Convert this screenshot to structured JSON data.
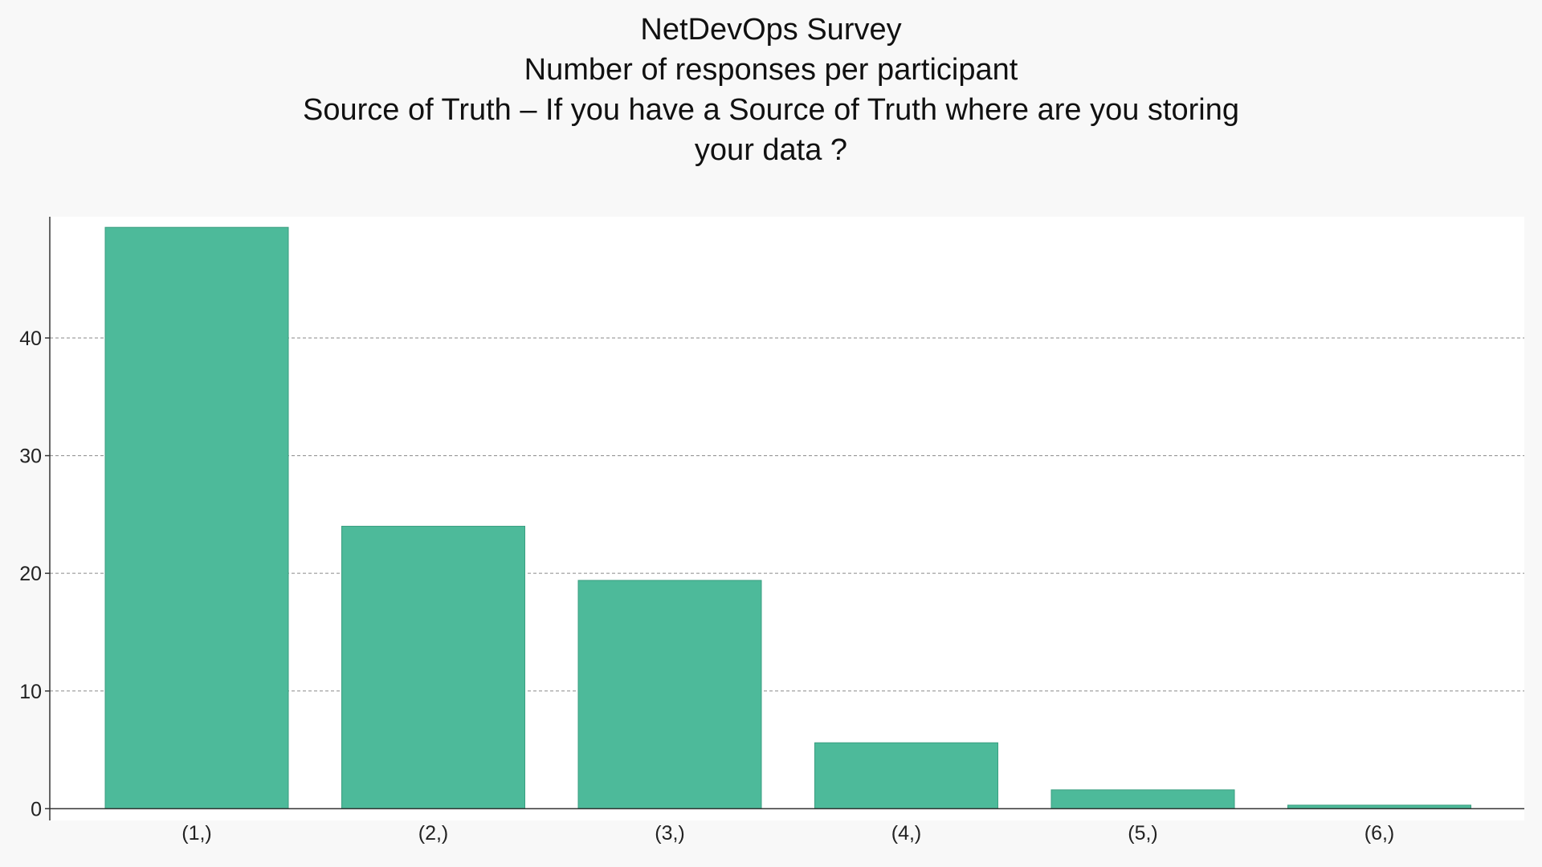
{
  "chart_data": {
    "type": "bar",
    "title": "NetDevOps Survey",
    "subtitle": "Number of responses per participant",
    "question_lines": [
      "Source of Truth – If you have a Source of Truth where are you storing",
      "your data ?"
    ],
    "xlabel": "",
    "ylabel": "",
    "categories": [
      "(1,)",
      "(2,)",
      "(3,)",
      "(4,)",
      "(5,)",
      "(6,)"
    ],
    "values": [
      49.4,
      24.0,
      19.4,
      5.6,
      1.6,
      0.3
    ],
    "ylim": [
      -1,
      50.3
    ],
    "yticks": [
      0,
      10,
      20,
      30,
      40
    ],
    "grid": true,
    "legend": "none",
    "colors": {
      "bar_fill": "#4dba9a",
      "bar_stroke": "#3a9e80",
      "plot_background": "#ffffff",
      "page_background": "#f8f8f8",
      "grid": "#8a8a8a",
      "axis": "#333333"
    }
  }
}
